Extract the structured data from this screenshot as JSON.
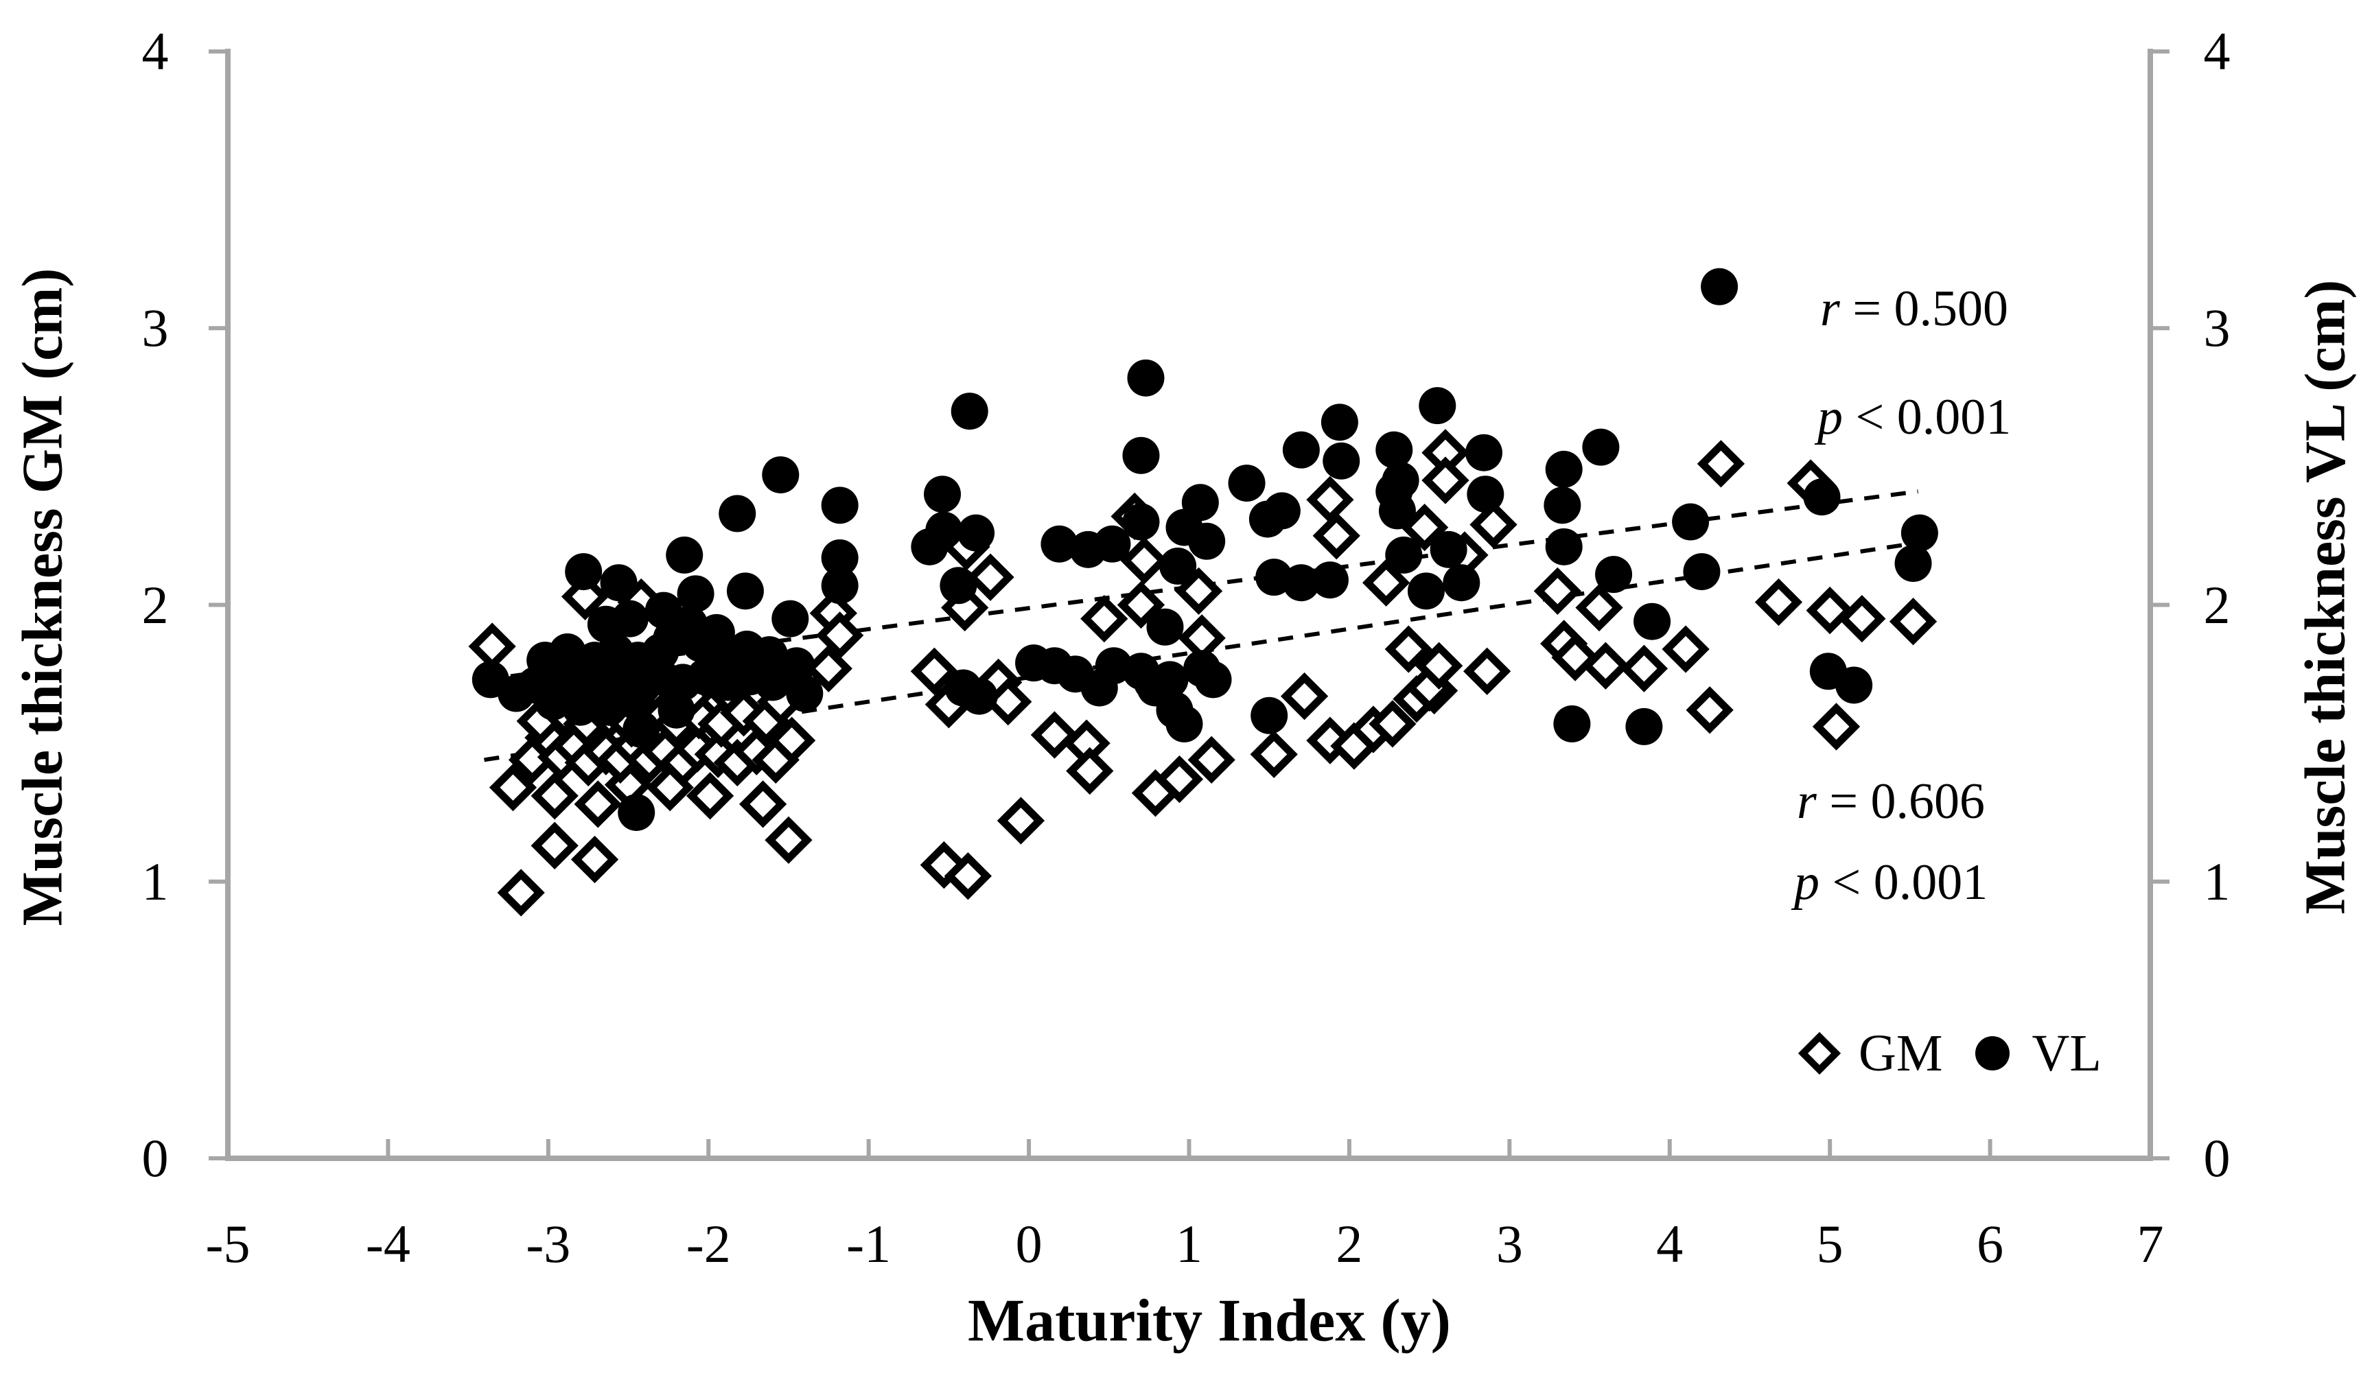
{
  "figure": {
    "x_axis": {
      "title": "Maturity Index (y)",
      "ticks": [
        "-5",
        "-4",
        "-3",
        "-2",
        "-1",
        "0",
        "1",
        "2",
        "3",
        "4",
        "5",
        "6",
        "7"
      ]
    },
    "left_axis": {
      "title": "Muscle thickness GM (cm)",
      "ticks": [
        "0",
        "1",
        "2",
        "3",
        "4"
      ]
    },
    "right_axis": {
      "title": "Muscle thickness VL (cm)",
      "ticks": [
        "0",
        "1",
        "2",
        "3",
        "4"
      ]
    },
    "annotations": {
      "vl": {
        "var1": "r",
        "text1": " = 0.500",
        "var2": "p",
        "text2": " < 0.001"
      },
      "gm": {
        "var1": "r",
        "text1": " = 0.606",
        "var2": "p",
        "text2": " < 0.001"
      }
    },
    "legend": [
      {
        "label": "GM",
        "marker": "open-diamond"
      },
      {
        "label": "VL",
        "marker": "filled-circle"
      }
    ],
    "colors": {
      "marker": "#000000",
      "axis": "#a6a6a6",
      "text": "#000000",
      "background": "#ffffff"
    }
  },
  "chart_data": {
    "type": "scatter",
    "title": "",
    "xlabel": "Maturity Index (y)",
    "ylabel_left": "Muscle thickness GM (cm)",
    "ylabel_right": "Muscle thickness VL (cm)",
    "xlim": [
      -5,
      7
    ],
    "ylim": [
      0,
      4
    ],
    "grid": false,
    "legend_position": "inside-bottom-right",
    "trendlines": [
      {
        "series": "GM",
        "r": 0.606,
        "p": "< 0.001",
        "style": "dashed",
        "x_start": -3.4,
        "y_start": 1.44,
        "x_end": 5.5,
        "y_end": 2.22
      },
      {
        "series": "VL",
        "r": 0.5,
        "p": "< 0.001",
        "style": "dashed",
        "x_start": -3.4,
        "y_start": 1.73,
        "x_end": 5.55,
        "y_end": 2.41
      }
    ],
    "series": [
      {
        "name": "GM",
        "marker": "open-diamond",
        "axis": "left",
        "points": [
          [
            -3.35,
            1.85
          ],
          [
            -3.17,
            0.96
          ],
          [
            -2.96,
            1.13
          ],
          [
            -2.71,
            1.08
          ],
          [
            -3.22,
            1.34
          ],
          [
            -2.96,
            1.31
          ],
          [
            -2.69,
            1.28
          ],
          [
            -2.5,
            1.35
          ],
          [
            -2.24,
            1.34
          ],
          [
            -1.99,
            1.31
          ],
          [
            -1.66,
            1.28
          ],
          [
            -1.5,
            1.15
          ],
          [
            -3.1,
            1.44
          ],
          [
            -3.0,
            1.52
          ],
          [
            -2.92,
            1.45
          ],
          [
            -2.83,
            1.49
          ],
          [
            -2.75,
            1.43
          ],
          [
            -2.64,
            1.47
          ],
          [
            -2.55,
            1.44
          ],
          [
            -2.46,
            1.49
          ],
          [
            -2.37,
            1.44
          ],
          [
            -2.27,
            1.47
          ],
          [
            -2.16,
            1.43
          ],
          [
            -2.07,
            1.48
          ],
          [
            -1.94,
            1.46
          ],
          [
            -1.82,
            1.43
          ],
          [
            -1.7,
            1.47
          ],
          [
            -1.58,
            1.44
          ],
          [
            -1.48,
            1.51
          ],
          [
            -3.05,
            1.58
          ],
          [
            -2.9,
            1.61
          ],
          [
            -2.76,
            1.57
          ],
          [
            -2.62,
            1.6
          ],
          [
            -2.48,
            1.57
          ],
          [
            -2.34,
            1.61
          ],
          [
            -2.2,
            1.57
          ],
          [
            -2.06,
            1.6
          ],
          [
            -1.92,
            1.57
          ],
          [
            -1.78,
            1.61
          ],
          [
            -1.64,
            1.58
          ],
          [
            -2.84,
            1.68
          ],
          [
            -2.6,
            1.67
          ],
          [
            -2.36,
            1.69
          ],
          [
            -2.12,
            1.67
          ],
          [
            -1.88,
            1.69
          ],
          [
            -1.55,
            1.65
          ],
          [
            -2.42,
            2.01
          ],
          [
            -2.77,
            2.03
          ],
          [
            -2.5,
            1.77
          ],
          [
            -1.72,
            1.78
          ],
          [
            -1.22,
            1.97
          ],
          [
            -1.18,
            1.89
          ],
          [
            -1.25,
            1.77
          ],
          [
            -0.24,
            2.1
          ],
          [
            -0.59,
            1.76
          ],
          [
            -0.5,
            1.64
          ],
          [
            -0.19,
            1.72
          ],
          [
            -0.13,
            1.65
          ],
          [
            -0.4,
            1.99
          ],
          [
            -0.39,
            2.21
          ],
          [
            -0.53,
            1.06
          ],
          [
            -0.38,
            1.02
          ],
          [
            -0.05,
            1.22
          ],
          [
            0.16,
            1.53
          ],
          [
            0.36,
            1.5
          ],
          [
            0.38,
            1.4
          ],
          [
            0.79,
            1.32
          ],
          [
            0.94,
            1.37
          ],
          [
            1.14,
            1.44
          ],
          [
            0.47,
            1.95
          ],
          [
            0.7,
            2.0
          ],
          [
            0.66,
            2.32
          ],
          [
            0.72,
            2.16
          ],
          [
            1.08,
            1.88
          ],
          [
            1.06,
            2.05
          ],
          [
            1.53,
            1.46
          ],
          [
            1.72,
            1.67
          ],
          [
            1.88,
            1.51
          ],
          [
            2.03,
            1.49
          ],
          [
            2.15,
            1.55
          ],
          [
            2.27,
            1.57
          ],
          [
            2.42,
            1.66
          ],
          [
            2.53,
            1.69
          ],
          [
            1.92,
            2.25
          ],
          [
            1.88,
            2.38
          ],
          [
            2.23,
            2.08
          ],
          [
            2.5,
            1.7
          ],
          [
            2.56,
            1.78
          ],
          [
            2.86,
            1.76
          ],
          [
            2.37,
            1.84
          ],
          [
            2.6,
            2.55
          ],
          [
            2.6,
            2.45
          ],
          [
            2.47,
            2.28
          ],
          [
            2.72,
            2.18
          ],
          [
            2.9,
            2.29
          ],
          [
            3.3,
            2.05
          ],
          [
            3.56,
            1.99
          ],
          [
            3.34,
            1.86
          ],
          [
            3.6,
            1.78
          ],
          [
            3.41,
            1.81
          ],
          [
            3.84,
            1.77
          ],
          [
            4.1,
            1.84
          ],
          [
            4.25,
            1.62
          ],
          [
            4.32,
            2.51
          ],
          [
            4.88,
            2.44
          ],
          [
            4.68,
            2.01
          ],
          [
            5.0,
            1.98
          ],
          [
            5.04,
            1.56
          ],
          [
            5.2,
            1.95
          ],
          [
            5.52,
            1.94
          ]
        ]
      },
      {
        "name": "VL",
        "marker": "filled-circle",
        "axis": "right",
        "points": [
          [
            -3.36,
            1.73
          ],
          [
            -3.2,
            1.68
          ],
          [
            -3.08,
            1.71
          ],
          [
            -2.97,
            1.74
          ],
          [
            -2.86,
            1.7
          ],
          [
            -2.75,
            1.73
          ],
          [
            -2.63,
            1.7
          ],
          [
            -2.52,
            1.74
          ],
          [
            -2.41,
            1.71
          ],
          [
            -2.97,
            1.65
          ],
          [
            -2.8,
            1.63
          ],
          [
            -2.62,
            1.63
          ],
          [
            -2.45,
            1.65
          ],
          [
            -2.42,
            1.55
          ],
          [
            -2.2,
            1.62
          ],
          [
            -3.02,
            1.8
          ],
          [
            -2.88,
            1.83
          ],
          [
            -2.71,
            1.8
          ],
          [
            -2.58,
            1.83
          ],
          [
            -2.44,
            1.8
          ],
          [
            -2.3,
            1.83
          ],
          [
            -2.78,
            2.12
          ],
          [
            -2.56,
            2.08
          ],
          [
            -2.49,
            1.95
          ],
          [
            -2.64,
            1.93
          ],
          [
            -2.15,
            2.18
          ],
          [
            -2.28,
            1.98
          ],
          [
            -2.12,
            1.93
          ],
          [
            -2.23,
            1.88
          ],
          [
            -2.05,
            1.86
          ],
          [
            -1.95,
            1.9
          ],
          [
            -2.3,
            1.74
          ],
          [
            -2.16,
            1.72
          ],
          [
            -2.02,
            1.74
          ],
          [
            -1.88,
            1.72
          ],
          [
            -1.74,
            1.74
          ],
          [
            -1.6,
            1.72
          ],
          [
            -1.9,
            1.8
          ],
          [
            -1.76,
            1.84
          ],
          [
            -1.62,
            1.82
          ],
          [
            -2.45,
            1.25
          ],
          [
            -2.08,
            2.04
          ],
          [
            -1.77,
            2.05
          ],
          [
            -1.49,
            1.95
          ],
          [
            -1.4,
            1.68
          ],
          [
            -1.45,
            1.78
          ],
          [
            -1.55,
            2.47
          ],
          [
            -1.82,
            2.33
          ],
          [
            -1.18,
            2.36
          ],
          [
            -1.18,
            2.17
          ],
          [
            -1.18,
            2.07
          ],
          [
            -0.44,
            2.07
          ],
          [
            -0.37,
            2.7
          ],
          [
            0.73,
            2.82
          ],
          [
            0.7,
            2.54
          ],
          [
            -0.54,
            2.4
          ],
          [
            -0.53,
            2.27
          ],
          [
            -0.62,
            2.21
          ],
          [
            -0.33,
            2.26
          ],
          [
            0.19,
            2.22
          ],
          [
            0.37,
            2.2
          ],
          [
            0.52,
            2.22
          ],
          [
            0.7,
            2.3
          ],
          [
            1.07,
            2.37
          ],
          [
            0.97,
            2.28
          ],
          [
            1.36,
            2.44
          ],
          [
            0.03,
            1.79
          ],
          [
            0.16,
            1.78
          ],
          [
            0.29,
            1.75
          ],
          [
            0.44,
            1.7
          ],
          [
            0.53,
            1.78
          ],
          [
            0.7,
            1.76
          ],
          [
            0.77,
            1.72
          ],
          [
            1.08,
            1.77
          ],
          [
            0.79,
            1.7
          ],
          [
            0.88,
            1.73
          ],
          [
            1.15,
            1.73
          ],
          [
            0.91,
            1.62
          ],
          [
            0.97,
            1.57
          ],
          [
            1.5,
            1.6
          ],
          [
            0.85,
            1.92
          ],
          [
            -0.41,
            1.7
          ],
          [
            -0.31,
            1.67
          ],
          [
            1.49,
            2.31
          ],
          [
            1.58,
            2.34
          ],
          [
            1.11,
            2.23
          ],
          [
            0.93,
            2.14
          ],
          [
            1.53,
            2.1
          ],
          [
            1.7,
            2.08
          ],
          [
            1.88,
            2.09
          ],
          [
            1.7,
            2.56
          ],
          [
            1.94,
            2.66
          ],
          [
            1.95,
            2.52
          ],
          [
            2.32,
            2.45
          ],
          [
            2.34,
            2.18
          ],
          [
            2.55,
            2.72
          ],
          [
            2.28,
            2.56
          ],
          [
            2.28,
            2.41
          ],
          [
            2.3,
            2.34
          ],
          [
            2.84,
            2.55
          ],
          [
            2.85,
            2.4
          ],
          [
            2.62,
            2.2
          ],
          [
            2.7,
            2.08
          ],
          [
            2.48,
            2.05
          ],
          [
            3.34,
            2.49
          ],
          [
            3.33,
            2.36
          ],
          [
            3.34,
            2.21
          ],
          [
            3.65,
            2.11
          ],
          [
            3.57,
            2.57
          ],
          [
            4.13,
            2.3
          ],
          [
            4.2,
            2.12
          ],
          [
            4.31,
            3.15
          ],
          [
            3.89,
            1.94
          ],
          [
            3.84,
            1.56
          ],
          [
            3.39,
            1.57
          ],
          [
            4.95,
            2.39
          ],
          [
            4.99,
            1.76
          ],
          [
            5.15,
            1.71
          ],
          [
            5.56,
            2.26
          ],
          [
            5.52,
            2.15
          ]
        ]
      }
    ]
  }
}
